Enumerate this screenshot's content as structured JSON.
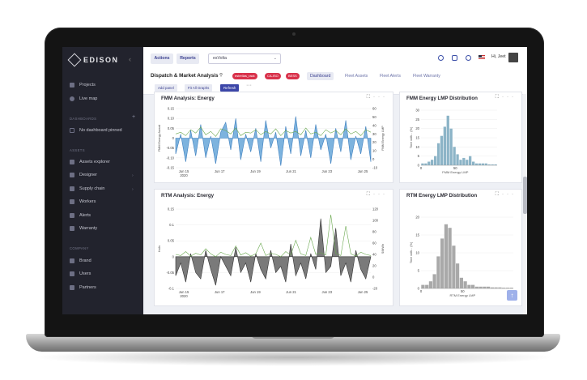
{
  "sidebar": {
    "logo": "EDISON",
    "collapse_icon": "chevron-left-icon",
    "items_top": [
      {
        "label": "Projects",
        "icon": "projects-icon"
      },
      {
        "label": "Live map",
        "icon": "map-pin-icon"
      }
    ],
    "section_dashboards": "DASHBOARDS",
    "dashboard_empty": "No dashboard pinned",
    "section_assets": "ASSETS",
    "assets_items": [
      {
        "label": "Assets explorer",
        "icon": "assets-explorer-icon"
      },
      {
        "label": "Designer",
        "icon": "designer-icon"
      },
      {
        "label": "Supply chain",
        "icon": "supply-chain-icon"
      },
      {
        "label": "Workers",
        "icon": "workers-icon"
      },
      {
        "label": "Alerts",
        "icon": "alerts-icon"
      },
      {
        "label": "Warranty",
        "icon": "warranty-icon"
      }
    ],
    "section_company": "COMPANY",
    "company_items": [
      {
        "label": "Brand",
        "icon": "brand-icon"
      },
      {
        "label": "Users",
        "icon": "users-icon"
      },
      {
        "label": "Partners",
        "icon": "partners-icon"
      }
    ]
  },
  "topbar": {
    "actions_label": "Actions",
    "reports_label": "Reports",
    "workspace_select": "esVolta",
    "greeting": "Hi, Jeet"
  },
  "page": {
    "title": "Dispatch & Market Analysis",
    "tags": [
      "estrellas_rack",
      "CA-ISO",
      "BESS"
    ],
    "tabs": [
      "Dashboard",
      "Fleet Assets",
      "Fleet Alerts",
      "Fleet Warranty"
    ],
    "active_tab": "Dashboard",
    "sub_buttons": [
      "Add panel",
      "Fit All Graphs",
      "Refresh"
    ]
  },
  "colors": {
    "sidebar_bg": "#22232d",
    "accent": "#3c46a8",
    "fmm_fill": "#7db3de",
    "fmm_line": "#3d7fbf",
    "rtm_fill": "#7a7a7a",
    "green_line": "#6aa84f",
    "hist_bar": "#8cb4c7",
    "hist_bar_gray": "#a9a9a9",
    "tag": "#d9324b"
  },
  "chart_data": [
    {
      "type": "area",
      "title": "FMM Analysis: Energy",
      "ylabel": "FMM Energy Award",
      "y2label": "FMM Energy LMP",
      "ylim": [
        -0.15,
        0.15
      ],
      "y2lim": [
        -10,
        60
      ],
      "yticks": [
        "0.15",
        "0.10",
        "0.05",
        "0",
        "-0.05",
        "-0.10",
        "-0.15"
      ],
      "y2ticks": [
        "60",
        "50",
        "40",
        "30",
        "20",
        "10",
        "0",
        "-10"
      ],
      "xticks": [
        "Jun 15\n2020",
        "Jun 17",
        "Jun 19",
        "Jun 21",
        "Jun 23",
        "Jun 25"
      ],
      "series": [
        {
          "values": [
            -0.08,
            0.02,
            -0.12,
            0.04,
            -0.09,
            0.07,
            -0.1,
            0.01,
            -0.13,
            0.03,
            0.08,
            -0.06,
            0.1,
            -0.11,
            0.02,
            -0.07,
            0.05,
            -0.12,
            0.09,
            -0.05,
            0.03,
            -0.14,
            0.06,
            -0.08,
            0.11,
            -0.09,
            0.04,
            -0.1,
            0.07,
            -0.06,
            0.02,
            -0.13,
            0.05,
            -0.07,
            0.09,
            -0.11,
            0.01,
            -0.08,
            0.06,
            -0.12
          ]
        },
        {
          "values": [
            30,
            32,
            28,
            35,
            31,
            38,
            29,
            33,
            27,
            36,
            34,
            30,
            37,
            28,
            32,
            31,
            35,
            29,
            33,
            30,
            36,
            28,
            34,
            31,
            33,
            29,
            37,
            30,
            32,
            28,
            35,
            31,
            34,
            29,
            36,
            30,
            33,
            28,
            35,
            32
          ]
        }
      ]
    },
    {
      "type": "bar",
      "title": "FMM Energy LMP Distribution",
      "xlabel": "FMM Energy LMP",
      "ylabel": "Time with... (%)",
      "ylim": [
        0,
        30
      ],
      "yticks": [
        "30",
        "25",
        "20",
        "15",
        "10",
        "5",
        "0"
      ],
      "xticks": [
        "0",
        "50"
      ],
      "values": [
        1,
        1,
        2,
        3,
        5,
        12,
        16,
        21,
        27,
        20,
        10,
        6,
        3,
        4,
        3,
        5,
        2,
        1,
        1,
        1,
        1,
        0.5,
        0.5,
        0.5
      ]
    },
    {
      "type": "area",
      "title": "RTM Analysis: Energy",
      "ylabel": "Halls",
      "y2label": "$/MWh",
      "ylim": [
        -0.1,
        0.15
      ],
      "y2lim": [
        -20,
        120
      ],
      "yticks": [
        "0.15",
        "0.1",
        "0.05",
        "0",
        "-0.05",
        "-0.1"
      ],
      "y2ticks": [
        "120",
        "100",
        "80",
        "60",
        "40",
        "20",
        "0",
        "-20"
      ],
      "xticks": [
        "Jun 15\n2020",
        "Jun 17",
        "Jun 19",
        "Jun 21",
        "Jun 23",
        "Jun 25"
      ],
      "series": [
        {
          "values": [
            -0.06,
            -0.02,
            -0.08,
            0.01,
            -0.05,
            -0.07,
            0.02,
            -0.04,
            -0.09,
            0.0,
            -0.03,
            -0.06,
            0.03,
            -0.05,
            -0.02,
            -0.08,
            0.01,
            -0.04,
            -0.07,
            0.02,
            -0.05,
            -0.03,
            -0.08,
            0.04,
            -0.06,
            -0.02,
            -0.07,
            0.01,
            -0.04,
            0.12,
            -0.05,
            -0.03,
            0.09,
            -0.06,
            -0.02,
            -0.08,
            0.02,
            -0.04,
            -0.07,
            0.0
          ]
        },
        {
          "values": [
            40,
            38,
            45,
            37,
            42,
            39,
            50,
            41,
            36,
            44,
            40,
            38,
            55,
            39,
            43,
            37,
            41,
            60,
            38,
            42,
            40,
            36,
            45,
            39,
            65,
            41,
            38,
            70,
            40,
            43,
            39,
            110,
            42,
            38,
            90,
            41,
            37,
            44,
            40,
            38
          ]
        }
      ]
    },
    {
      "type": "bar",
      "title": "RTM Energy LMP Distribution",
      "xlabel": "RTM Energy LMP",
      "ylabel": "Time with... (%)",
      "ylim": [
        0,
        20
      ],
      "yticks": [
        "20",
        "15",
        "10",
        "5",
        "0"
      ],
      "xticks": [
        "0",
        "50"
      ],
      "values": [
        1,
        1,
        2,
        4,
        9,
        14,
        18,
        17,
        12,
        7,
        3,
        2,
        1,
        1,
        0.5,
        0.5,
        0.5,
        0.5,
        0.3,
        0.3,
        0.3,
        0.2,
        0.2,
        0.2
      ]
    }
  ]
}
